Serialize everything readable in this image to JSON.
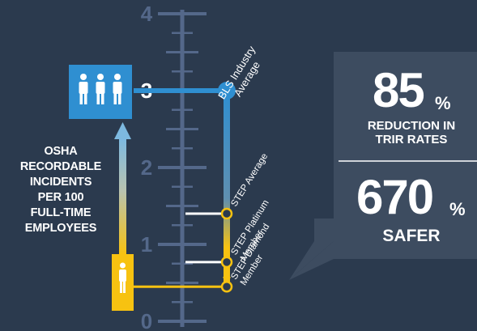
{
  "chart_data": {
    "type": "infographic-scale",
    "ylabel": [
      "OSHA",
      "RECORDABLE",
      "INCIDENTS",
      "PER 100",
      "FULL-TIME",
      "EMPLOYEES"
    ],
    "ylim": [
      0,
      4
    ],
    "ticks": [
      {
        "value": 0,
        "label": "0"
      },
      {
        "value": 1,
        "label": "1"
      },
      {
        "value": 2,
        "label": "2"
      },
      {
        "value": 3,
        "label": "3"
      },
      {
        "value": 4,
        "label": "4"
      }
    ],
    "minor_ticks": [
      0.5,
      1.5,
      2.5,
      3.5
    ],
    "points": [
      {
        "name": "bls",
        "label": [
          "BLS Industry",
          "Average"
        ],
        "value": 3.0
      },
      {
        "name": "step-average",
        "label": [
          "STEP Average"
        ],
        "value": 1.4
      },
      {
        "name": "step-platinum",
        "label": [
          "STEP Platinum",
          "Member"
        ],
        "value": 0.77
      },
      {
        "name": "step-diamond",
        "label": [
          "STEP Diamond",
          "Member"
        ],
        "value": 0.45
      }
    ]
  },
  "stats": [
    {
      "number": "85",
      "unit": "%",
      "caption": [
        "REDUCTION IN",
        "TRIR RATES"
      ]
    },
    {
      "number": "670",
      "unit": "%",
      "caption": [
        "SAFER"
      ]
    }
  ],
  "icons": {
    "people_group": "people-group-icon",
    "person": "person-icon",
    "arrow": "arrow-up-icon"
  },
  "colors": {
    "background": "#2b3a4e",
    "axis": "#54688a",
    "blue": "#2f8fd1",
    "yellow": "#f7c211",
    "stat_panel": "#3d4c60"
  }
}
